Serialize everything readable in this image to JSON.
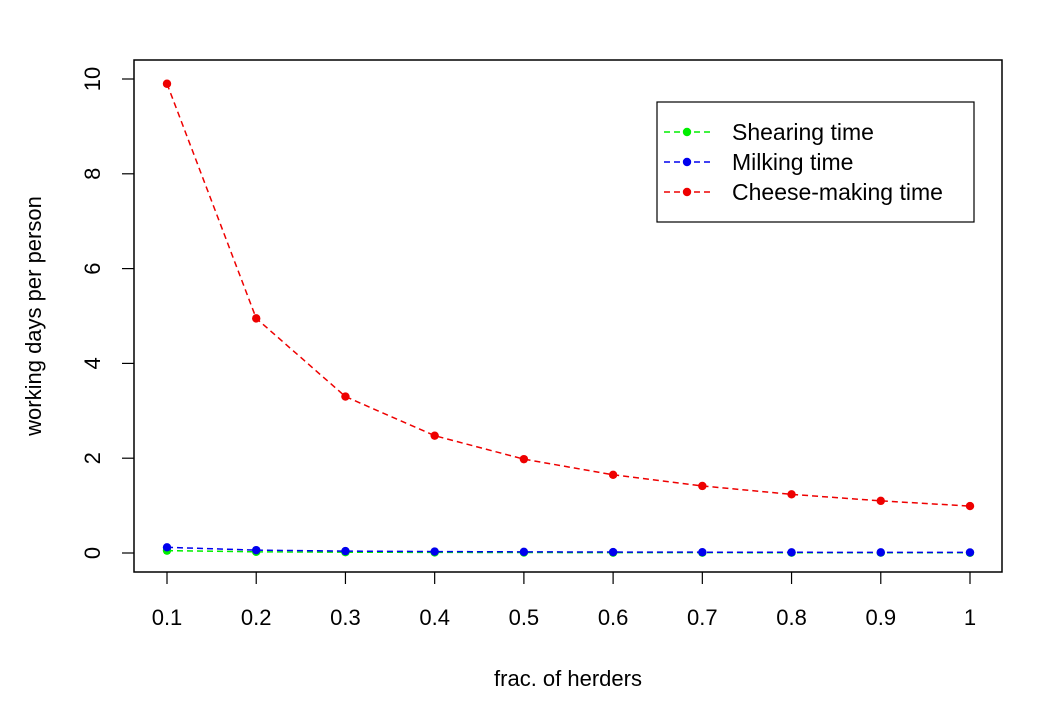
{
  "chart_data": {
    "type": "line",
    "title": "",
    "xlabel": "frac. of herders",
    "ylabel": "working days per person",
    "xlim": [
      0.1,
      1.0
    ],
    "ylim": [
      0,
      10
    ],
    "x": [
      0.1,
      0.2,
      0.3,
      0.4,
      0.5,
      0.6,
      0.7,
      0.8,
      0.9,
      1.0
    ],
    "x_tick_labels": [
      "0.1",
      "0.2",
      "0.3",
      "0.4",
      "0.5",
      "0.6",
      "0.7",
      "0.8",
      "0.9",
      "1"
    ],
    "y_ticks": [
      0,
      2,
      4,
      6,
      8,
      10
    ],
    "y_tick_labels": [
      "0",
      "2",
      "4",
      "6",
      "8",
      "10"
    ],
    "grid": false,
    "legend": {
      "position": "top-right"
    },
    "series": [
      {
        "name": "Shearing time",
        "color": "#00ee00",
        "line_style": "dashed",
        "values": [
          0.05,
          0.025,
          0.017,
          0.013,
          0.01,
          0.008,
          0.007,
          0.006,
          0.006,
          0.005
        ]
      },
      {
        "name": "Milking time",
        "color": "#0000ee",
        "line_style": "dashed",
        "values": [
          0.12,
          0.06,
          0.04,
          0.03,
          0.024,
          0.02,
          0.017,
          0.015,
          0.013,
          0.012
        ]
      },
      {
        "name": "Cheese-making time",
        "color": "#ee0000",
        "line_style": "dashed",
        "values": [
          9.9,
          4.95,
          3.3,
          2.475,
          1.98,
          1.65,
          1.414,
          1.2375,
          1.1,
          0.99
        ]
      }
    ]
  }
}
